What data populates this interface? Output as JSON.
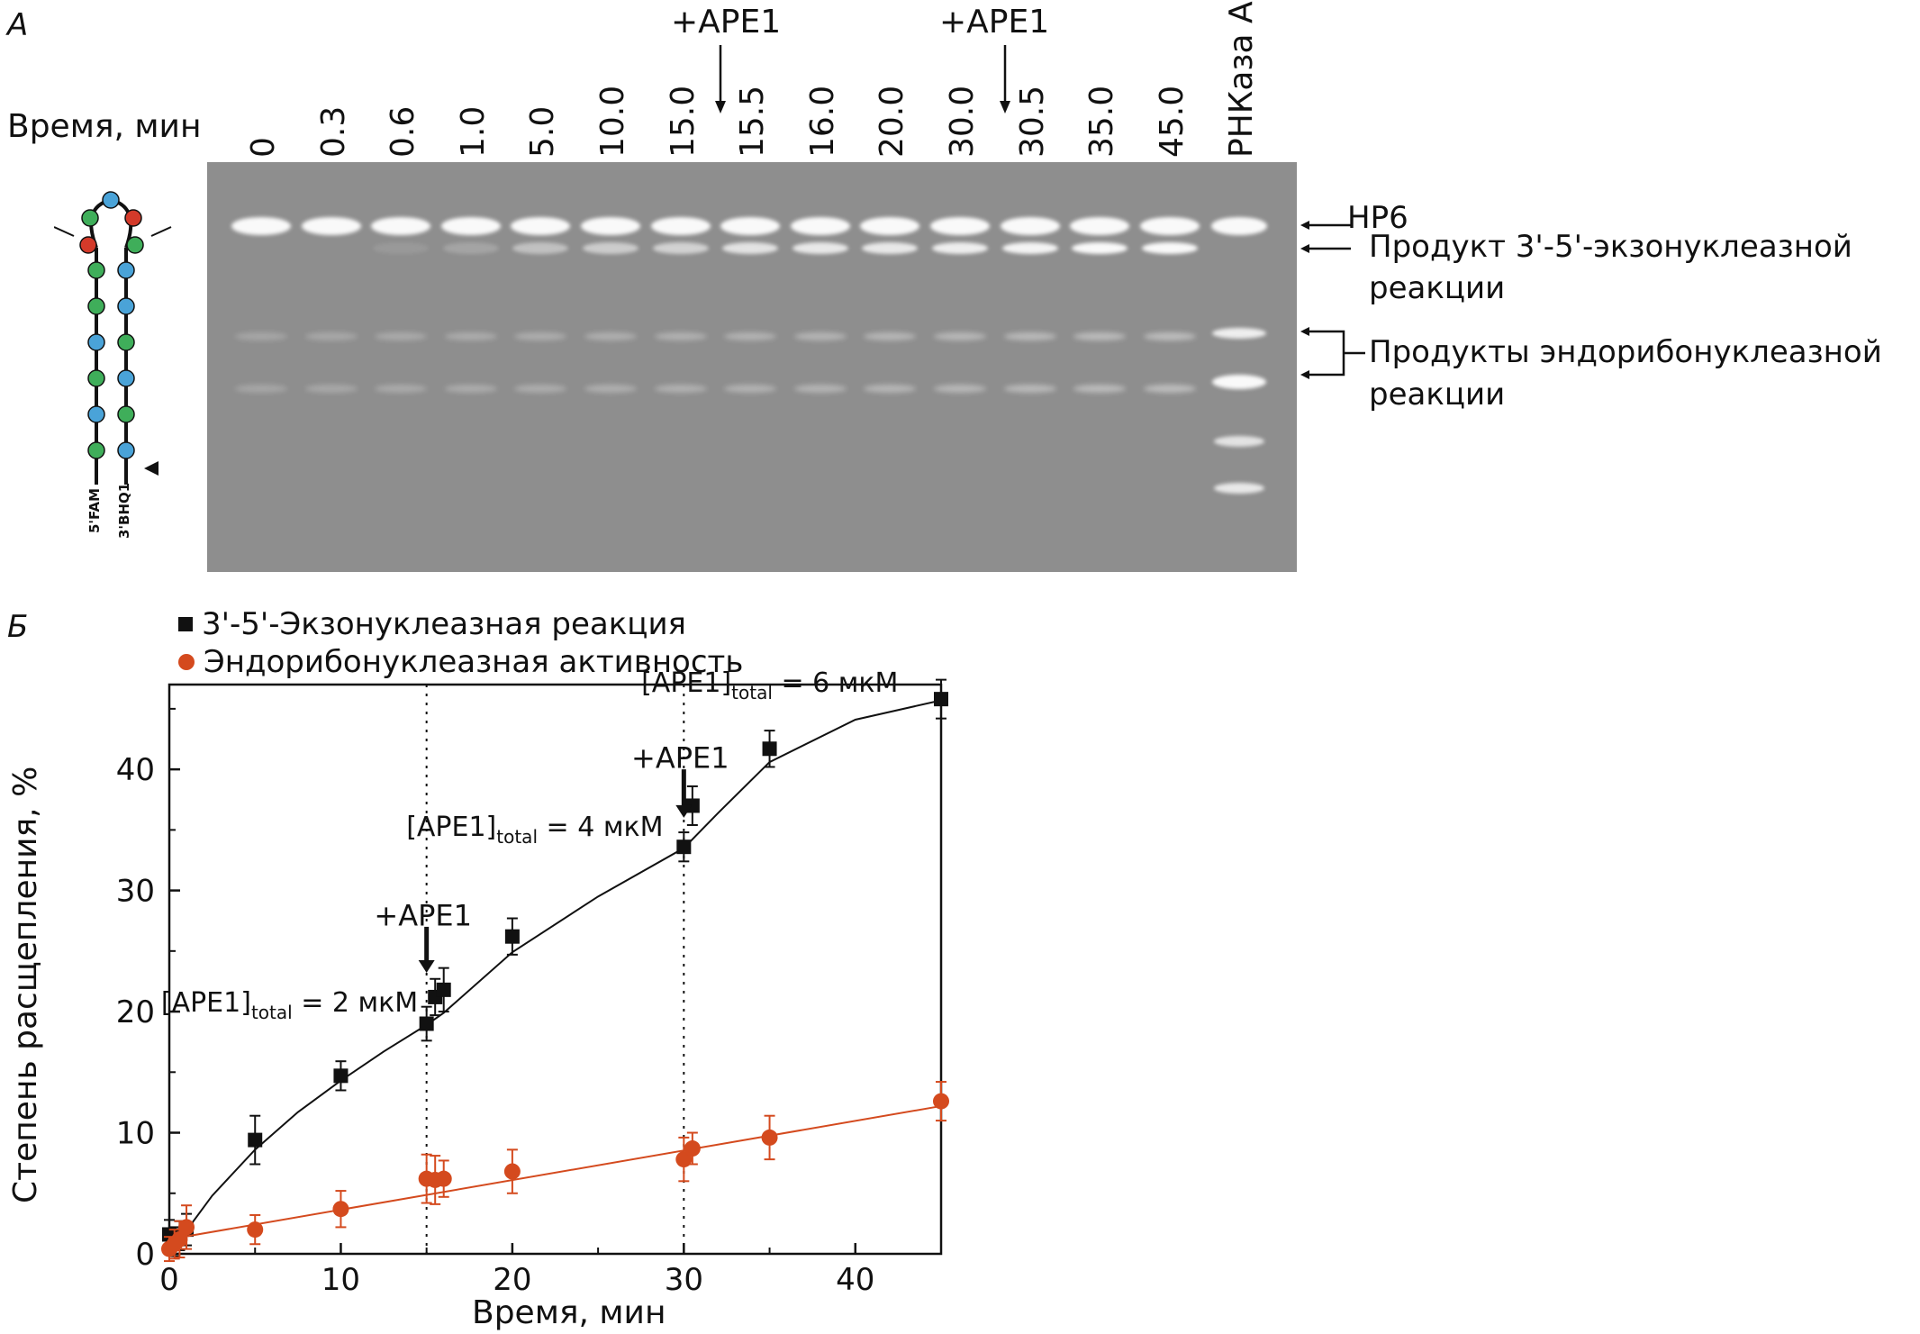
{
  "panelA": {
    "letter": "А",
    "time_label": "Время, мин",
    "lanes": [
      "0",
      "0.3",
      "0.6",
      "1.0",
      "5.0",
      "10.0",
      "15.0",
      "15.5",
      "16.0",
      "20.0",
      "30.0",
      "30.5",
      "35.0",
      "45.0",
      "РНКаза А"
    ],
    "ape_markers": [
      {
        "label": "+APE1",
        "after_lane": "15.0"
      },
      {
        "label": "+APE1",
        "after_lane": "30.0"
      }
    ],
    "hairpin": {
      "five_prime": "5'FAM",
      "three_prime": "3'BHQ1"
    },
    "right_labels": {
      "hp6": "HP6",
      "exo_line1": "Продукт 3'-5'-экзонуклеазной",
      "exo_line2": "реакции",
      "endo_line1": "Продукты эндорибонуклеазной",
      "endo_line2": "реакции"
    }
  },
  "panelB": {
    "letter": "Б"
  },
  "chart_data": {
    "type": "scatter",
    "xlabel": "Время, мин",
    "ylabel": "Степень расщепления, %",
    "xlim": [
      0,
      45
    ],
    "ylim": [
      0,
      47
    ],
    "xticks": [
      "0",
      "10",
      "20",
      "30",
      "40"
    ],
    "yticks": [
      "0",
      "10",
      "20",
      "30",
      "40"
    ],
    "legend_position": "top-left",
    "series": [
      {
        "name": "3'-5'-Экзонуклеазная реакция",
        "color": "#111111",
        "marker": "square",
        "x": [
          0,
          0.3,
          0.6,
          1.0,
          5.0,
          10.0,
          15.0,
          15.5,
          16.0,
          20.0,
          30.0,
          30.5,
          35.0,
          45.0
        ],
        "y": [
          1.6,
          1.0,
          1.5,
          2.0,
          9.4,
          14.7,
          19.0,
          21.2,
          21.8,
          26.2,
          33.6,
          37.0,
          41.7,
          45.8
        ],
        "err": [
          1.2,
          1.2,
          1.2,
          1.3,
          2.0,
          1.2,
          1.4,
          1.5,
          1.8,
          1.5,
          1.2,
          1.6,
          1.5,
          1.6
        ],
        "fit": [
          [
            0,
            0
          ],
          [
            2.5,
            4.8
          ],
          [
            5,
            8.6
          ],
          [
            7.5,
            11.7
          ],
          [
            10,
            14.3
          ],
          [
            12.5,
            16.7
          ],
          [
            15,
            18.9
          ],
          [
            16,
            19.9
          ],
          [
            20,
            24.9
          ],
          [
            25,
            29.5
          ],
          [
            30,
            33.5
          ],
          [
            32,
            36.4
          ],
          [
            35,
            40.6
          ],
          [
            40,
            44.1
          ],
          [
            45,
            45.7
          ]
        ]
      },
      {
        "name": "Эндорибонуклеазная активность",
        "color": "#d44a1e",
        "marker": "circle",
        "x": [
          0,
          0.3,
          0.6,
          1.0,
          5.0,
          10.0,
          15.0,
          15.5,
          16.0,
          20.0,
          30.0,
          30.5,
          35.0,
          45.0
        ],
        "y": [
          0.4,
          0.8,
          1.2,
          2.2,
          2.0,
          3.7,
          6.2,
          6.1,
          6.2,
          6.8,
          7.8,
          8.7,
          9.6,
          12.6
        ],
        "err": [
          1.0,
          1.2,
          1.5,
          1.8,
          1.2,
          1.5,
          2.0,
          2.0,
          1.5,
          1.8,
          1.8,
          1.3,
          1.8,
          1.6
        ],
        "fit": [
          [
            0,
            1.2
          ],
          [
            45,
            12.2
          ]
        ]
      }
    ],
    "vlines": [
      15,
      30
    ],
    "annotations": [
      {
        "type": "arrow",
        "label": "+APE1",
        "x": 15,
        "y_label": 28.0,
        "y_from": 27.0,
        "y_to": 23.2
      },
      {
        "type": "arrow",
        "label": "+APE1",
        "x": 30,
        "y_label": 41.0,
        "y_from": 40.0,
        "y_to": 36.0
      },
      {
        "type": "text",
        "main": "[APE1]",
        "sub": "total",
        "rest": " = 2 мкМ",
        "x": 14.5,
        "y": 20
      },
      {
        "type": "text",
        "main": "[APE1]",
        "sub": "total",
        "rest": " = 4 мкМ",
        "x": 28.8,
        "y": 34.5
      },
      {
        "type": "text",
        "main": "[APE1]",
        "sub": "total",
        "rest": " = 6 мкМ",
        "x": 42.5,
        "y": 46.4
      }
    ]
  }
}
